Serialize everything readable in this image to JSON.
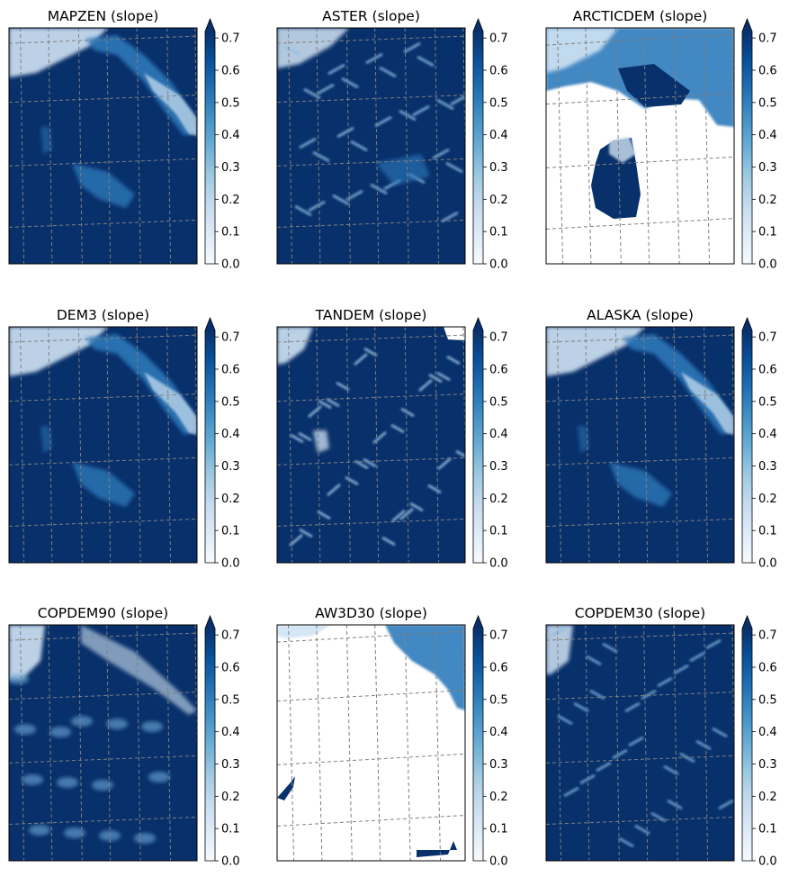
{
  "figure": {
    "background": "#ffffff"
  },
  "colormap": {
    "name": "Blues",
    "stops": [
      "#f7fbff",
      "#deebf7",
      "#c6dbef",
      "#9ecae1",
      "#6baed6",
      "#4292c6",
      "#2171b5",
      "#08519c",
      "#08306b"
    ],
    "vmin": 0.0,
    "vmax": 0.72,
    "extend": "max",
    "ticks": [
      "0.0",
      "0.1",
      "0.2",
      "0.3",
      "0.4",
      "0.5",
      "0.6",
      "0.7"
    ]
  },
  "grid": {
    "color": "#808080",
    "style": "dashed"
  },
  "chart_data": [
    {
      "type": "heatmap",
      "title": "MAPZEN (slope)",
      "variable": "slope",
      "crange": [
        0.0,
        0.7
      ]
    },
    {
      "type": "heatmap",
      "title": "ASTER (slope)",
      "variable": "slope",
      "crange": [
        0.0,
        0.7
      ]
    },
    {
      "type": "heatmap",
      "title": "ARCTICDEM (slope)",
      "variable": "slope",
      "crange": [
        0.0,
        0.7
      ]
    },
    {
      "type": "heatmap",
      "title": "DEM3 (slope)",
      "variable": "slope",
      "crange": [
        0.0,
        0.7
      ]
    },
    {
      "type": "heatmap",
      "title": "TANDEM (slope)",
      "variable": "slope",
      "crange": [
        0.0,
        0.7
      ]
    },
    {
      "type": "heatmap",
      "title": "ALASKA (slope)",
      "variable": "slope",
      "crange": [
        0.0,
        0.7
      ]
    },
    {
      "type": "heatmap",
      "title": "COPDEM90 (slope)",
      "variable": "slope",
      "crange": [
        0.0,
        0.7
      ]
    },
    {
      "type": "heatmap",
      "title": "AW3D30 (slope)",
      "variable": "slope",
      "crange": [
        0.0,
        0.7
      ]
    },
    {
      "type": "heatmap",
      "title": "COPDEM30 (slope)",
      "variable": "slope",
      "crange": [
        0.0,
        0.7
      ]
    }
  ]
}
